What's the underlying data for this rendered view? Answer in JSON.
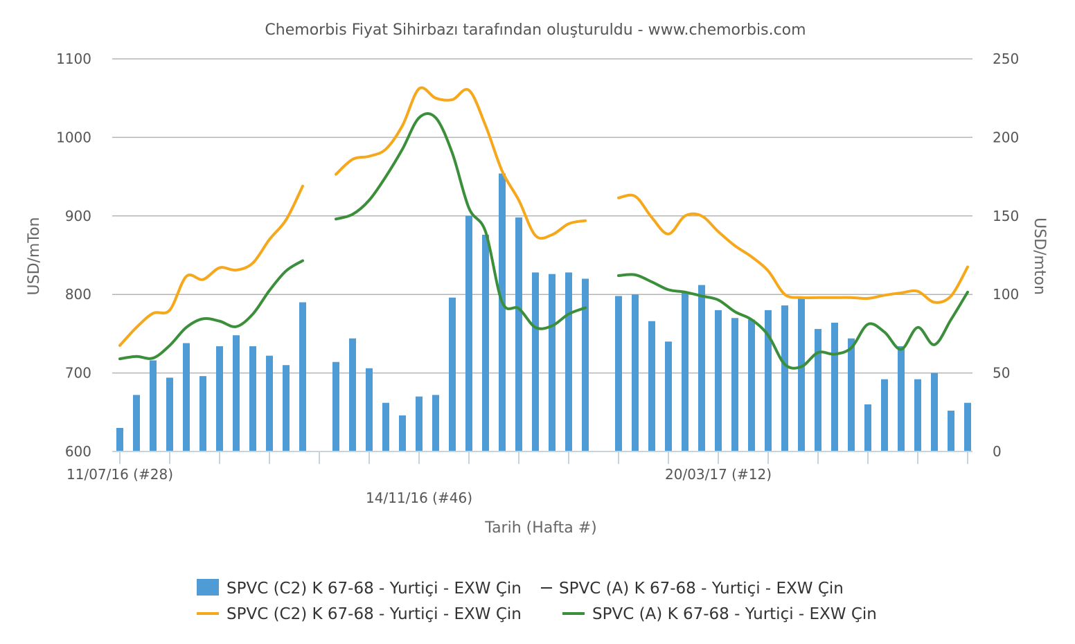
{
  "chart_data": {
    "type": "bar",
    "title": "Chemorbis Fiyat Sihirbazı tarafından oluşturuldu - www.chemorbis.com",
    "xlabel": "Tarih (Hafta #)",
    "ylabel_left": "USD/mTon",
    "ylabel_right": "USD/mton",
    "ylim_left": [
      600,
      1100
    ],
    "ylim_right": [
      0,
      250
    ],
    "yticks_left": [
      "600",
      "700",
      "800",
      "900",
      "1000",
      "1100"
    ],
    "yticks_right": [
      "0",
      "50",
      "100",
      "150",
      "200",
      "250"
    ],
    "grid": true,
    "legend_position": "bottom",
    "x_labels": [
      {
        "label": "11/07/16 (#28)",
        "index": 0
      },
      {
        "label": "14/11/16 (#46)",
        "index": 18
      },
      {
        "label": "20/03/17 (#12)",
        "index": 36
      }
    ],
    "colors": {
      "bar": "#4f9bd5",
      "line_c2": "#f5a81c",
      "line_a": "#3b8f3b",
      "grid": "#b5b5b5",
      "axis": "#c5d3dd",
      "text": "#555555"
    },
    "series": [
      {
        "name": "SPVC (C2) K 67-68 - Yurtiçi - EXW Çin",
        "type": "bar",
        "axis": "right",
        "values": [
          15,
          36,
          58,
          47,
          69,
          48,
          67,
          74,
          67,
          61,
          55,
          95,
          null,
          57,
          72,
          53,
          31,
          23,
          35,
          36,
          98,
          150,
          138,
          177,
          149,
          114,
          113,
          114,
          110,
          null,
          99,
          100,
          83,
          70,
          101,
          106,
          90,
          85,
          84,
          90,
          93,
          98,
          78,
          82,
          72,
          30,
          46,
          67,
          46,
          50,
          26,
          31
        ]
      },
      {
        "name": "SPVC (A) K 67-68 - Yurtiçi - EXW Çin",
        "type": "legend-only"
      },
      {
        "name": "SPVC (C2) K 67-68 - Yurtiçi - EXW Çin",
        "type": "line",
        "axis": "left",
        "values": [
          735,
          758,
          776,
          780,
          823,
          819,
          834,
          831,
          840,
          870,
          895,
          938,
          null,
          953,
          972,
          976,
          985,
          1015,
          1062,
          1050,
          1048,
          1060,
          1015,
          957,
          920,
          875,
          876,
          890,
          894,
          null,
          923,
          925,
          898,
          877,
          900,
          900,
          880,
          862,
          848,
          830,
          800,
          796,
          796,
          796,
          796,
          795,
          799,
          802,
          804,
          790,
          798,
          835
        ]
      },
      {
        "name": "SPVC (A) K 67-68 - Yurtiçi - EXW Çin",
        "type": "line",
        "axis": "left",
        "values": [
          718,
          721,
          719,
          735,
          758,
          769,
          766,
          759,
          775,
          805,
          830,
          843,
          null,
          896,
          902,
          920,
          950,
          985,
          1025,
          1025,
          980,
          910,
          880,
          790,
          782,
          758,
          760,
          775,
          783,
          null,
          824,
          825,
          816,
          806,
          803,
          798,
          793,
          778,
          768,
          748,
          711,
          708,
          726,
          724,
          732,
          762,
          752,
          730,
          758,
          736,
          768,
          803
        ]
      }
    ]
  }
}
